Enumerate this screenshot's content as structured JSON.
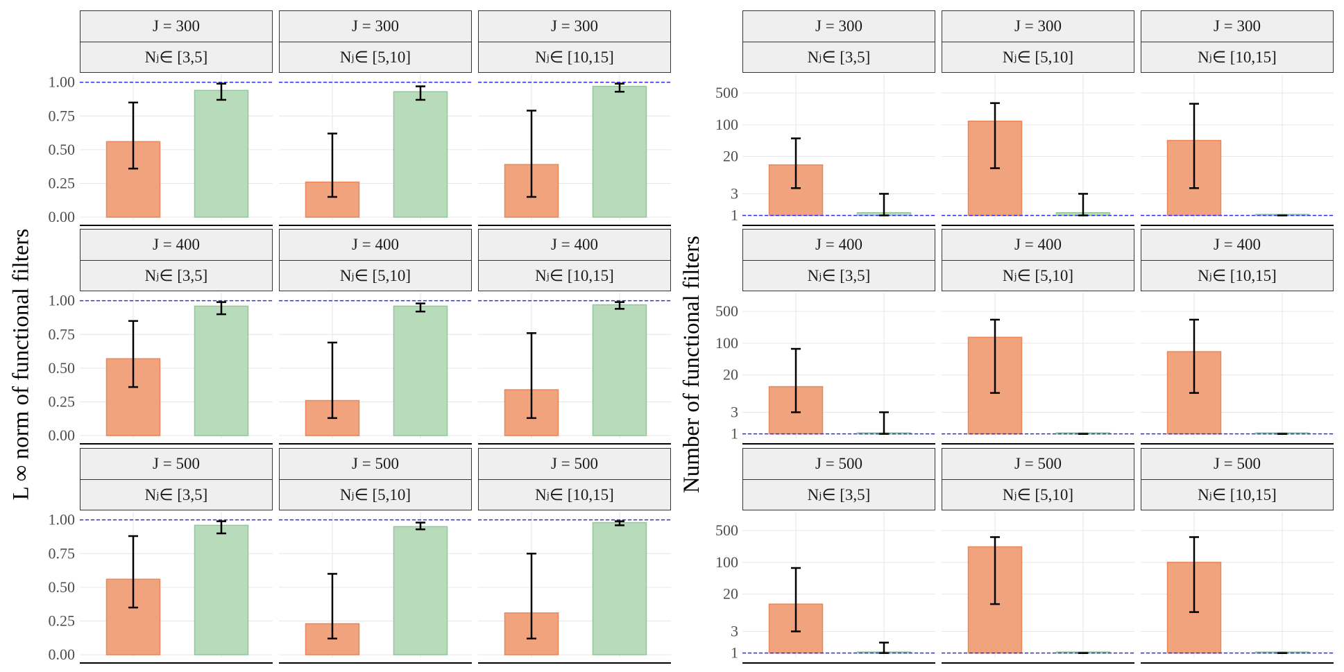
{
  "colors": {
    "orange": "#f0a37c",
    "orange_edge": "#e8875a",
    "green": "#b8dcbb",
    "green_edge": "#93c69a",
    "ref_line": "#2a2ae8",
    "error_bar": "#000000",
    "strip_bg": "#efefef",
    "grid": "#e6e6e6"
  },
  "strip_text": {
    "j_prefix": "J = ",
    "nj_base": "N",
    "nj_sub": "j",
    "nj_sym": " ∈  "
  },
  "chart_data": [
    {
      "type": "bar",
      "name": "sup_norm",
      "ylabel": "L ∞ norm of functional filters",
      "ylim": [
        -0.02,
        1.06
      ],
      "yscale": "linear",
      "yticks": [
        0,
        0.25,
        0.5,
        0.75,
        1.0
      ],
      "ytick_labels": [
        "0.00",
        "0.25",
        "0.50",
        "0.75",
        "1.00"
      ],
      "reference_line": 1.0,
      "grid": true,
      "rows": [
        "300",
        "400",
        "500"
      ],
      "cols": [
        "[3,5]",
        "[5,10]",
        "[10,15]"
      ],
      "panels": [
        [
          {
            "orange": 0.56,
            "orange_err": [
              0.36,
              0.85
            ],
            "green": 0.94,
            "green_err": [
              0.87,
              0.99
            ]
          },
          {
            "orange": 0.26,
            "orange_err": [
              0.15,
              0.62
            ],
            "green": 0.93,
            "green_err": [
              0.87,
              0.97
            ]
          },
          {
            "orange": 0.39,
            "orange_err": [
              0.15,
              0.79
            ],
            "green": 0.97,
            "green_err": [
              0.93,
              0.99
            ]
          }
        ],
        [
          {
            "orange": 0.57,
            "orange_err": [
              0.36,
              0.85
            ],
            "green": 0.96,
            "green_err": [
              0.9,
              0.99
            ]
          },
          {
            "orange": 0.26,
            "orange_err": [
              0.13,
              0.69
            ],
            "green": 0.96,
            "green_err": [
              0.92,
              0.98
            ]
          },
          {
            "orange": 0.34,
            "orange_err": [
              0.13,
              0.76
            ],
            "green": 0.97,
            "green_err": [
              0.94,
              0.99
            ]
          }
        ],
        [
          {
            "orange": 0.56,
            "orange_err": [
              0.35,
              0.88
            ],
            "green": 0.96,
            "green_err": [
              0.9,
              0.99
            ]
          },
          {
            "orange": 0.23,
            "orange_err": [
              0.12,
              0.6
            ],
            "green": 0.95,
            "green_err": [
              0.93,
              0.98
            ]
          },
          {
            "orange": 0.31,
            "orange_err": [
              0.12,
              0.75
            ],
            "green": 0.98,
            "green_err": [
              0.96,
              0.99
            ]
          }
        ]
      ]
    },
    {
      "type": "bar",
      "name": "count",
      "ylabel": "Number of functional filters",
      "ylim": [
        0.8,
        1300
      ],
      "yscale": "log",
      "yticks": [
        1,
        3,
        20,
        100,
        500
      ],
      "ytick_labels": [
        "1",
        "3",
        "20",
        "100",
        "500"
      ],
      "reference_line": 1,
      "grid": true,
      "rows": [
        "300",
        "400",
        "500"
      ],
      "cols": [
        "[3,5]",
        "[5,10]",
        "[10,15]"
      ],
      "panels": [
        [
          {
            "orange": 13,
            "orange_err": [
              4,
              50
            ],
            "green": 1.15,
            "green_err": [
              1,
              3
            ]
          },
          {
            "orange": 120,
            "orange_err": [
              11,
              300
            ],
            "green": 1.15,
            "green_err": [
              1,
              3
            ]
          },
          {
            "orange": 45,
            "orange_err": [
              4,
              290
            ],
            "green": 1.0,
            "green_err": [
              1,
              1
            ]
          }
        ],
        [
          {
            "orange": 11,
            "orange_err": [
              3,
              75
            ],
            "green": 1.05,
            "green_err": [
              1,
              3
            ]
          },
          {
            "orange": 135,
            "orange_err": [
              8,
              330
            ],
            "green": 1.0,
            "green_err": [
              1,
              1
            ]
          },
          {
            "orange": 65,
            "orange_err": [
              8,
              330
            ],
            "green": 1.0,
            "green_err": [
              1,
              1
            ]
          }
        ],
        [
          {
            "orange": 12,
            "orange_err": [
              3,
              75
            ],
            "green": 1.03,
            "green_err": [
              1,
              1.7
            ]
          },
          {
            "orange": 220,
            "orange_err": [
              12,
              360
            ],
            "green": 1.0,
            "green_err": [
              1,
              1
            ]
          },
          {
            "orange": 100,
            "orange_err": [
              8,
              360
            ],
            "green": 1.0,
            "green_err": [
              1,
              1
            ]
          }
        ]
      ]
    }
  ]
}
